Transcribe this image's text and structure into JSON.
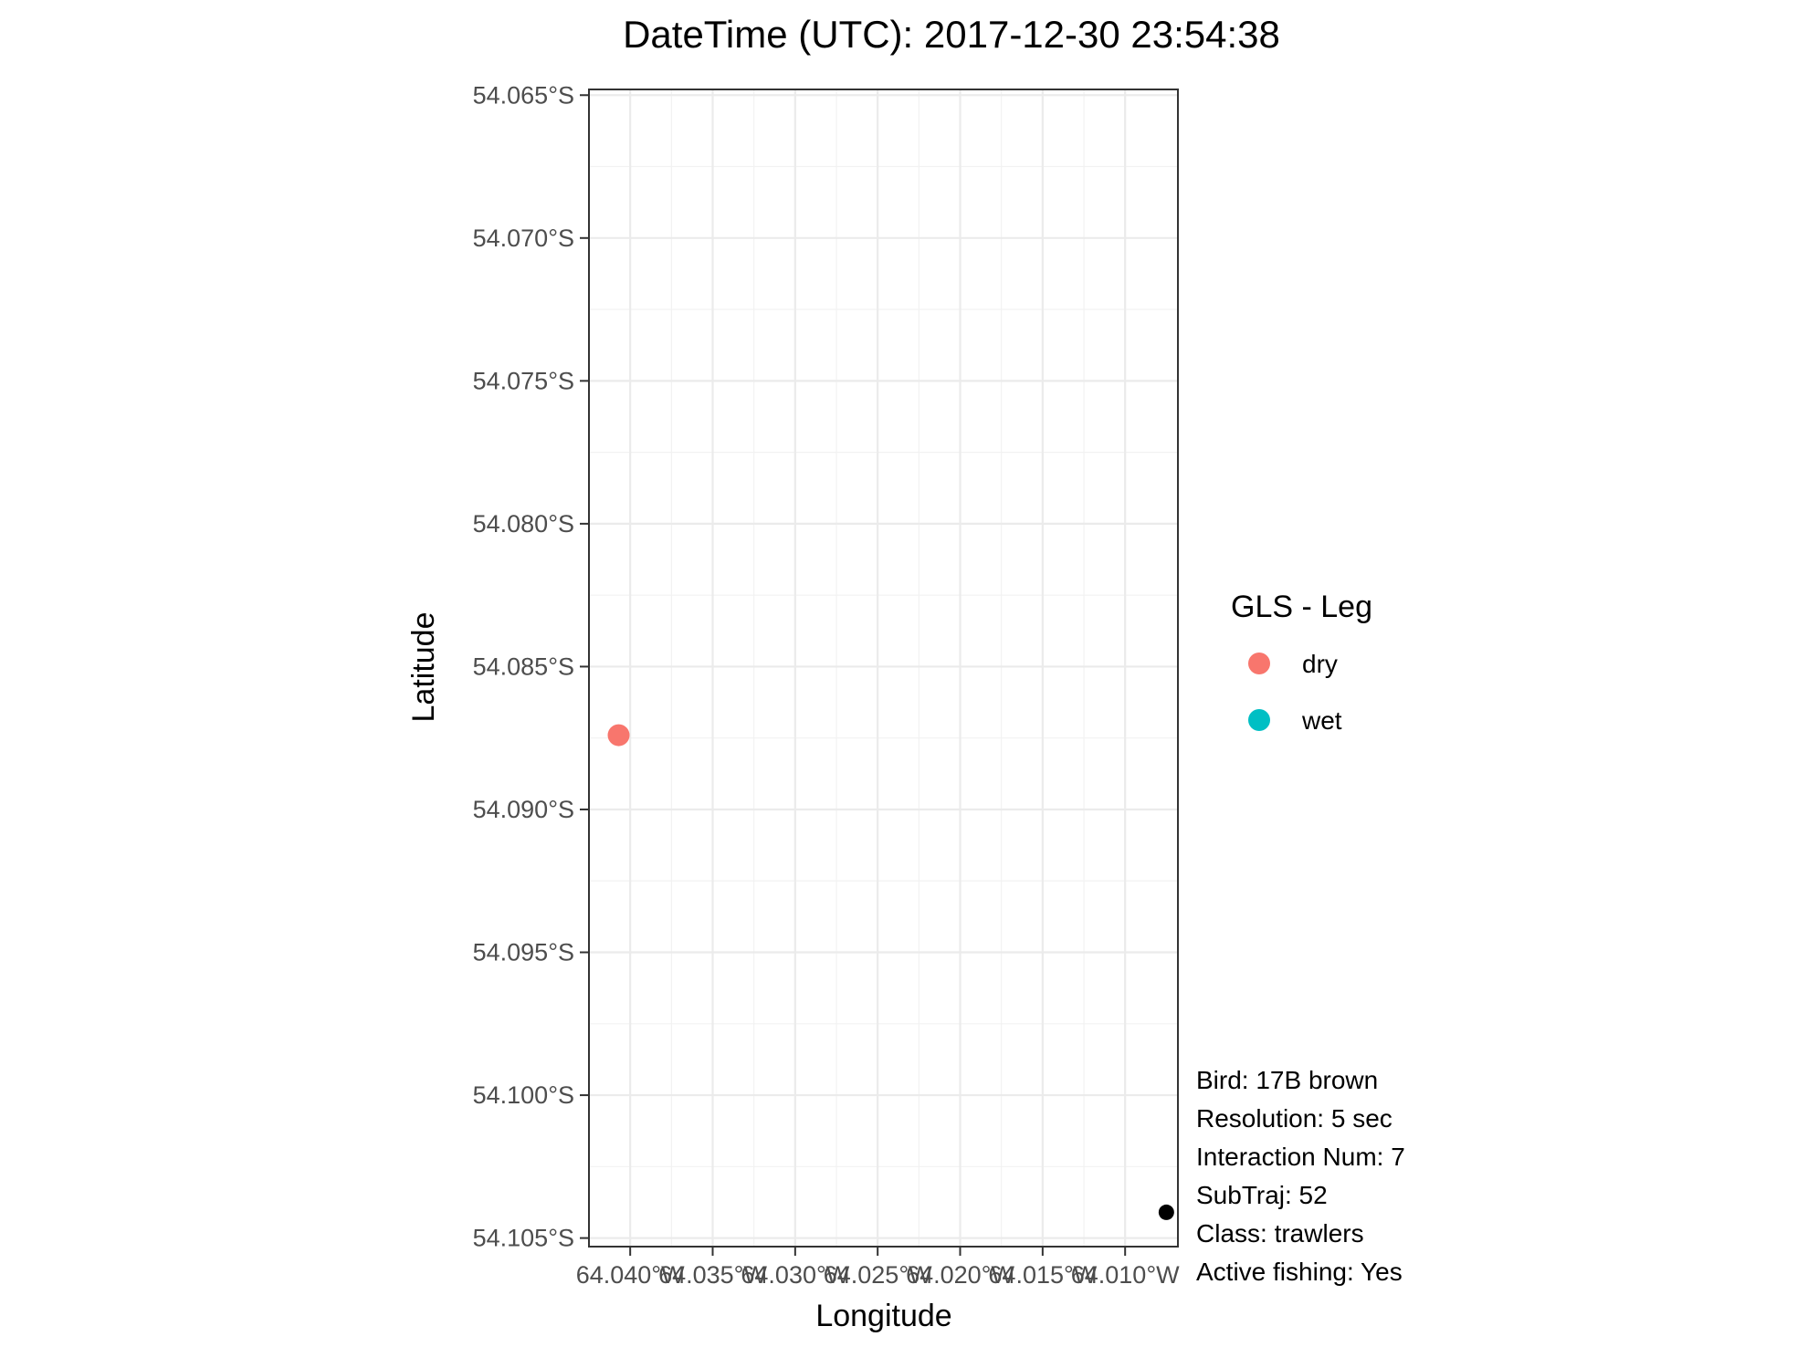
{
  "chart_data": {
    "type": "scatter",
    "title": "DateTime (UTC): 2017-12-30 23:54:38",
    "xlabel": "Longitude",
    "ylabel": "Latitude",
    "x_unit": "°W",
    "y_unit": "°S",
    "xlim": [
      64.0425,
      64.0068
    ],
    "ylim": [
      54.1053,
      54.0648
    ],
    "x_ticks": [
      64.04,
      64.035,
      64.03,
      64.025,
      64.02,
      64.015,
      64.01
    ],
    "x_tick_labels": [
      "64.040°W",
      "64.035°W",
      "64.030°W",
      "64.025°W",
      "64.020°W",
      "64.015°W",
      "64.010°W"
    ],
    "y_ticks": [
      54.065,
      54.07,
      54.075,
      54.08,
      54.085,
      54.09,
      54.095,
      54.1,
      54.105
    ],
    "y_tick_labels": [
      "54.065°S",
      "54.070°S",
      "54.075°S",
      "54.080°S",
      "54.085°S",
      "54.090°S",
      "54.095°S",
      "54.100°S",
      "54.105°S"
    ],
    "grid": true,
    "legend": {
      "title": "GLS - Leg",
      "position": "right",
      "entries": [
        {
          "label": "dry",
          "color": "#F8766D"
        },
        {
          "label": "wet",
          "color": "#00BFC4"
        }
      ]
    },
    "series": [
      {
        "name": "dry",
        "color": "#F8766D",
        "points": [
          {
            "x": 64.0407,
            "y": 54.0874
          }
        ]
      },
      {
        "color": "#000000",
        "points": [
          {
            "x": 64.0075,
            "y": 54.1041
          }
        ]
      }
    ],
    "annotations": [
      "Bird: 17B brown",
      "Resolution: 5 sec",
      "Interaction Num: 7",
      "SubTraj: 52",
      "Class: trawlers",
      "Active fishing: Yes"
    ]
  }
}
